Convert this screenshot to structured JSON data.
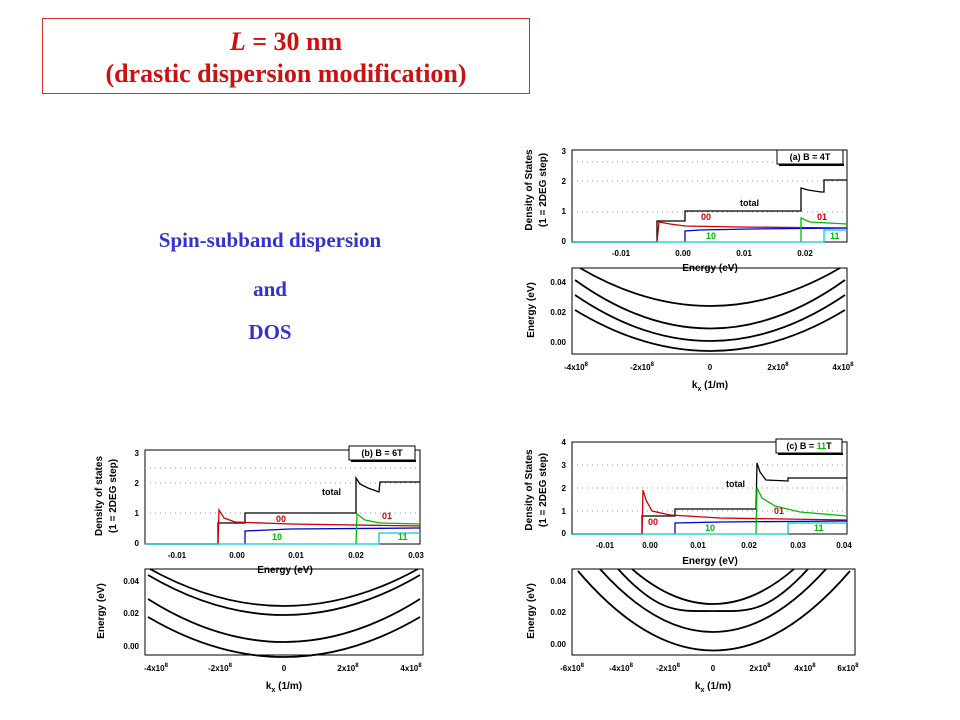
{
  "title": {
    "L": "L",
    "eq": " = 30 nm",
    "line2": "(drastic dispersion modification)"
  },
  "labels": {
    "spin": "Spin-subband dispersion",
    "and": "and",
    "dos": "DOS"
  },
  "colors": {
    "title": "#cc1111",
    "label": "#3333cc",
    "s00": "#cc0000",
    "s10": "#0000cc",
    "s01": "#00bb00",
    "s11": "#00cccc",
    "total": "#000000"
  },
  "panels": [
    {
      "id": "a",
      "dos": {
        "legend": "(a) B = 4T",
        "ylabel1": "Density of States",
        "ylabel2": "(1 = 2DEG step)",
        "xlabel": "Energy (eV)",
        "xticks": [
          "-0.01",
          "0.00",
          "0.01",
          "0.02"
        ],
        "yticks": [
          "0",
          "1",
          "2",
          "3"
        ],
        "total_label": "total",
        "subband_labels": [
          "00",
          "10",
          "01",
          "11"
        ]
      },
      "disp": {
        "ylabel": "Energy (eV)",
        "xlabel_k": "k",
        "xlabel_sub": "x",
        "xlabel_unit": " (1/m)",
        "yticks": [
          "0.00",
          "0.02",
          "0.04"
        ],
        "xticks": [
          "-4x10",
          "-2x10",
          "0",
          "2x10",
          "4x10"
        ],
        "exp": "8"
      }
    },
    {
      "id": "b",
      "dos": {
        "legend": "(b) B = 6T",
        "ylabel1": "Density of states",
        "ylabel2": "(1 = 2DEG step)",
        "xlabel": "Energy (eV)",
        "xticks": [
          "-0.01",
          "0.00",
          "0.01",
          "0.02",
          "0.03"
        ],
        "yticks": [
          "0",
          "1",
          "2",
          "3"
        ],
        "total_label": "total",
        "subband_labels": [
          "00",
          "10",
          "01",
          "11"
        ]
      },
      "disp": {
        "ylabel": "Energy (eV)",
        "xlabel_k": "k",
        "xlabel_sub": "x",
        "xlabel_unit": " (1/m)",
        "yticks": [
          "0.00",
          "0.02",
          "0.04"
        ],
        "xticks": [
          "-4x10",
          "-2x10",
          "0",
          "2x10",
          "4x10"
        ],
        "exp": "8"
      }
    },
    {
      "id": "c",
      "dos": {
        "legend_pre": "(c) B = ",
        "legend_num": "11",
        "legend_post": "T",
        "ylabel1": "Density of States",
        "ylabel2": "(1 = 2DEG step)",
        "xlabel": "Energy (eV)",
        "xticks": [
          "-0.01",
          "0.00",
          "0.01",
          "0.02",
          "0.03",
          "0.04"
        ],
        "yticks": [
          "0",
          "1",
          "2",
          "3",
          "4"
        ],
        "total_label": "total",
        "subband_labels": [
          "00",
          "10",
          "01",
          "11"
        ]
      },
      "disp": {
        "ylabel": "Energy (eV)",
        "xlabel_k": "k",
        "xlabel_sub": "x",
        "xlabel_unit": " (1/m)",
        "yticks": [
          "0.00",
          "0.02",
          "0.04"
        ],
        "xticks": [
          "-6x10",
          "-4x10",
          "-2x10",
          "0",
          "2x10",
          "4x10",
          "6x10"
        ],
        "exp": "8"
      }
    }
  ]
}
